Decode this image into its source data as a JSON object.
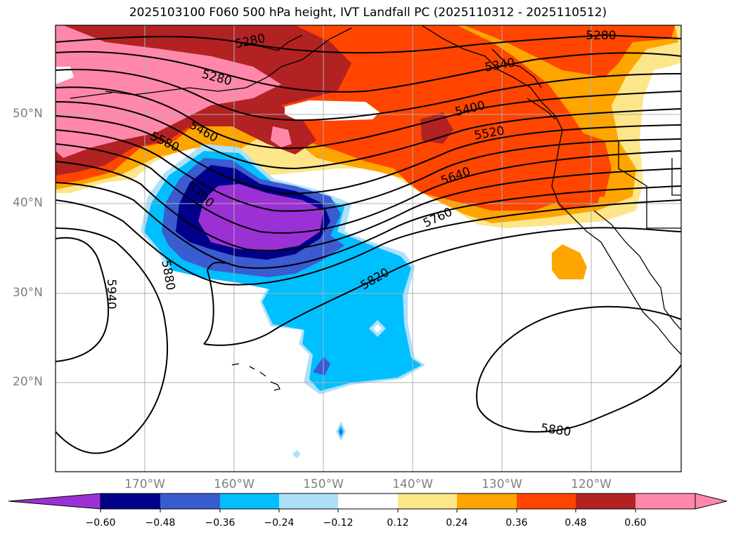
{
  "title": "2025103100 F060 500 hPa height, IVT Landfall PC (2025110312 - 2025110512)",
  "map": {
    "lat_labels": [
      "50°N",
      "40°N",
      "30°N",
      "20°N"
    ],
    "lon_labels": [
      "170°W",
      "160°W",
      "150°W",
      "140°W",
      "130°W",
      "120°W"
    ],
    "contour_labels": [
      "5280",
      "5280",
      "5280",
      "5340",
      "5400",
      "5460",
      "5520",
      "5580",
      "5640",
      "5700",
      "5760",
      "5820",
      "5880",
      "5880",
      "5940"
    ],
    "grid": true
  },
  "colorbar": {
    "labels": [
      "−0.60",
      "−0.48",
      "−0.36",
      "−0.24",
      "−0.12",
      "0.12",
      "0.24",
      "0.36",
      "0.48",
      "0.60"
    ],
    "colors": [
      "#9b30d4",
      "#00008b",
      "#3b5bd1",
      "#00bfff",
      "#afe0fa",
      "#ffffff",
      "#fde68a",
      "#ffa500",
      "#ff4500",
      "#b22222",
      "#ff88aa",
      "#ff88aa"
    ],
    "extend": "both"
  }
}
